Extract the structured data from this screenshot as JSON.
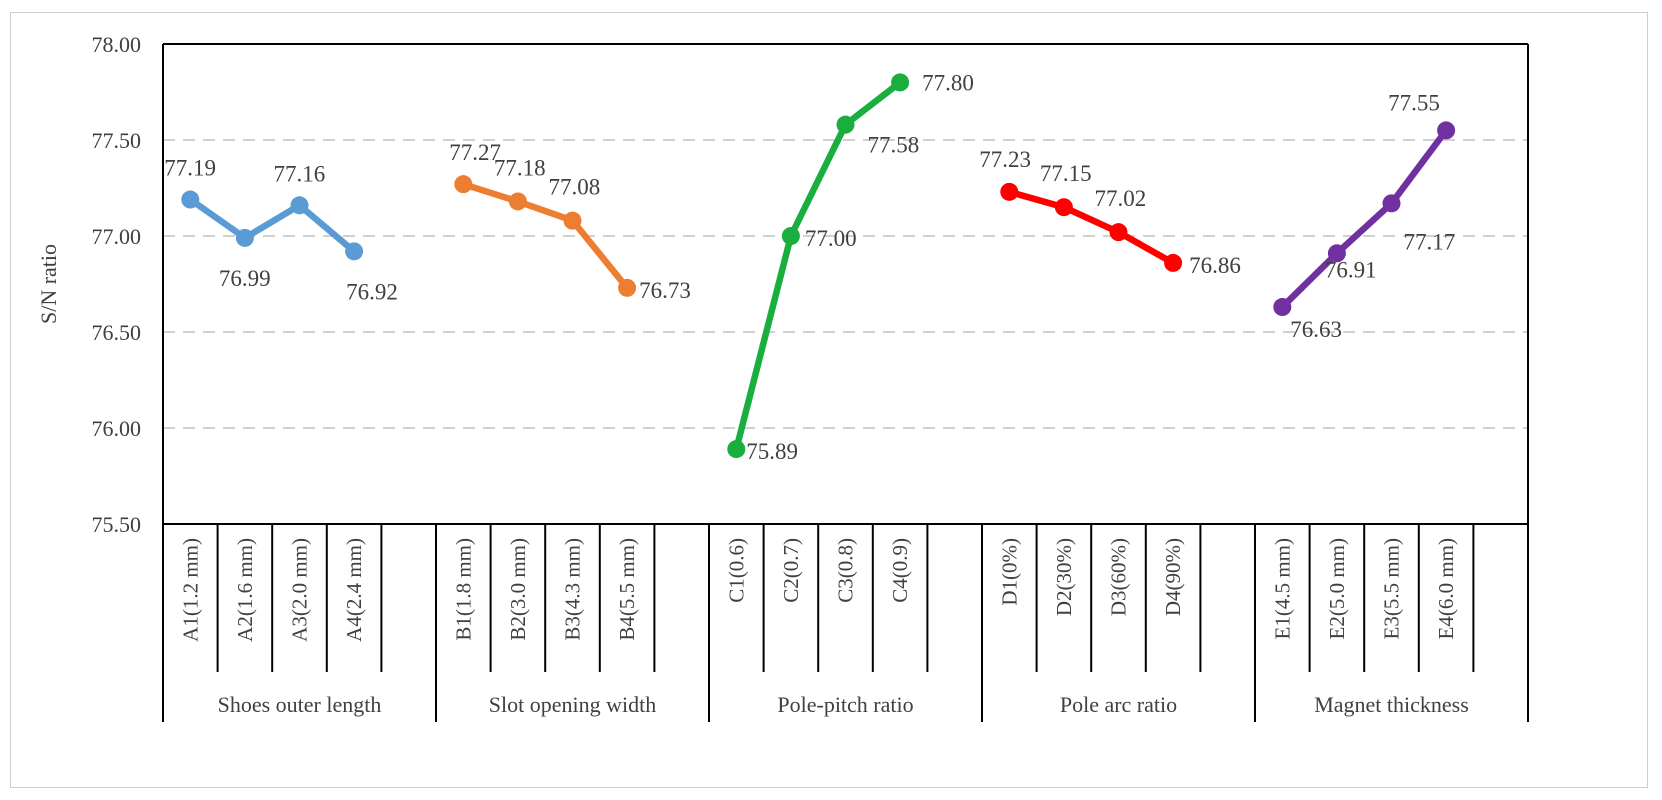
{
  "chart_data": {
    "type": "line",
    "ylabel": "S/N ratio",
    "xlabel": "",
    "title": "",
    "ylim": [
      75.5,
      78.0
    ],
    "yticks": [
      "75.50",
      "76.00",
      "76.50",
      "77.00",
      "77.50",
      "78.00"
    ],
    "grid": "horizontal dashed",
    "legend": "none",
    "groups": [
      {
        "name": "Shoes outer length",
        "color": "#5B9BD5",
        "categories": [
          "A1(1.2 mm)",
          "A2(1.6 mm)",
          "A3(2.0 mm)",
          "A4(2.4 mm)"
        ],
        "values": [
          77.19,
          76.99,
          77.16,
          76.92
        ],
        "labels": [
          "77.19",
          "76.99",
          "77.16",
          "76.92"
        ]
      },
      {
        "name": "Slot opening width",
        "color": "#ED7D31",
        "categories": [
          "B1(1.8 mm)",
          "B2(3.0 mm)",
          "B3(4.3 mm)",
          "B4(5.5 mm)"
        ],
        "values": [
          77.27,
          77.18,
          77.08,
          76.73
        ],
        "labels": [
          "77.27",
          "77.18",
          "77.08",
          "76.73"
        ]
      },
      {
        "name": "Pole-pitch ratio",
        "color": "#1AAE3E",
        "categories": [
          "C1(0.6)",
          "C2(0.7)",
          "C3(0.8)",
          "C4(0.9)"
        ],
        "values": [
          75.89,
          77.0,
          77.58,
          77.8
        ],
        "labels": [
          "75.89",
          "77.00",
          "77.58",
          "77.80"
        ]
      },
      {
        "name": "Pole arc ratio",
        "color": "#FF0000",
        "categories": [
          "D1(0%)",
          "D2(30%)",
          "D3(60%)",
          "D4(90%)"
        ],
        "values": [
          77.23,
          77.15,
          77.02,
          76.86
        ],
        "labels": [
          "77.23",
          "77.15",
          "77.02",
          "76.86"
        ]
      },
      {
        "name": "Magnet thickness",
        "color": "#7030A0",
        "categories": [
          "E1(4.5 mm)",
          "E2(5.0 mm)",
          "E3(5.5 mm)",
          "E4(6.0 mm)"
        ],
        "values": [
          76.63,
          76.91,
          77.17,
          77.55
        ],
        "labels": [
          "76.63",
          "76.91",
          "77.17",
          "77.55"
        ]
      }
    ]
  }
}
